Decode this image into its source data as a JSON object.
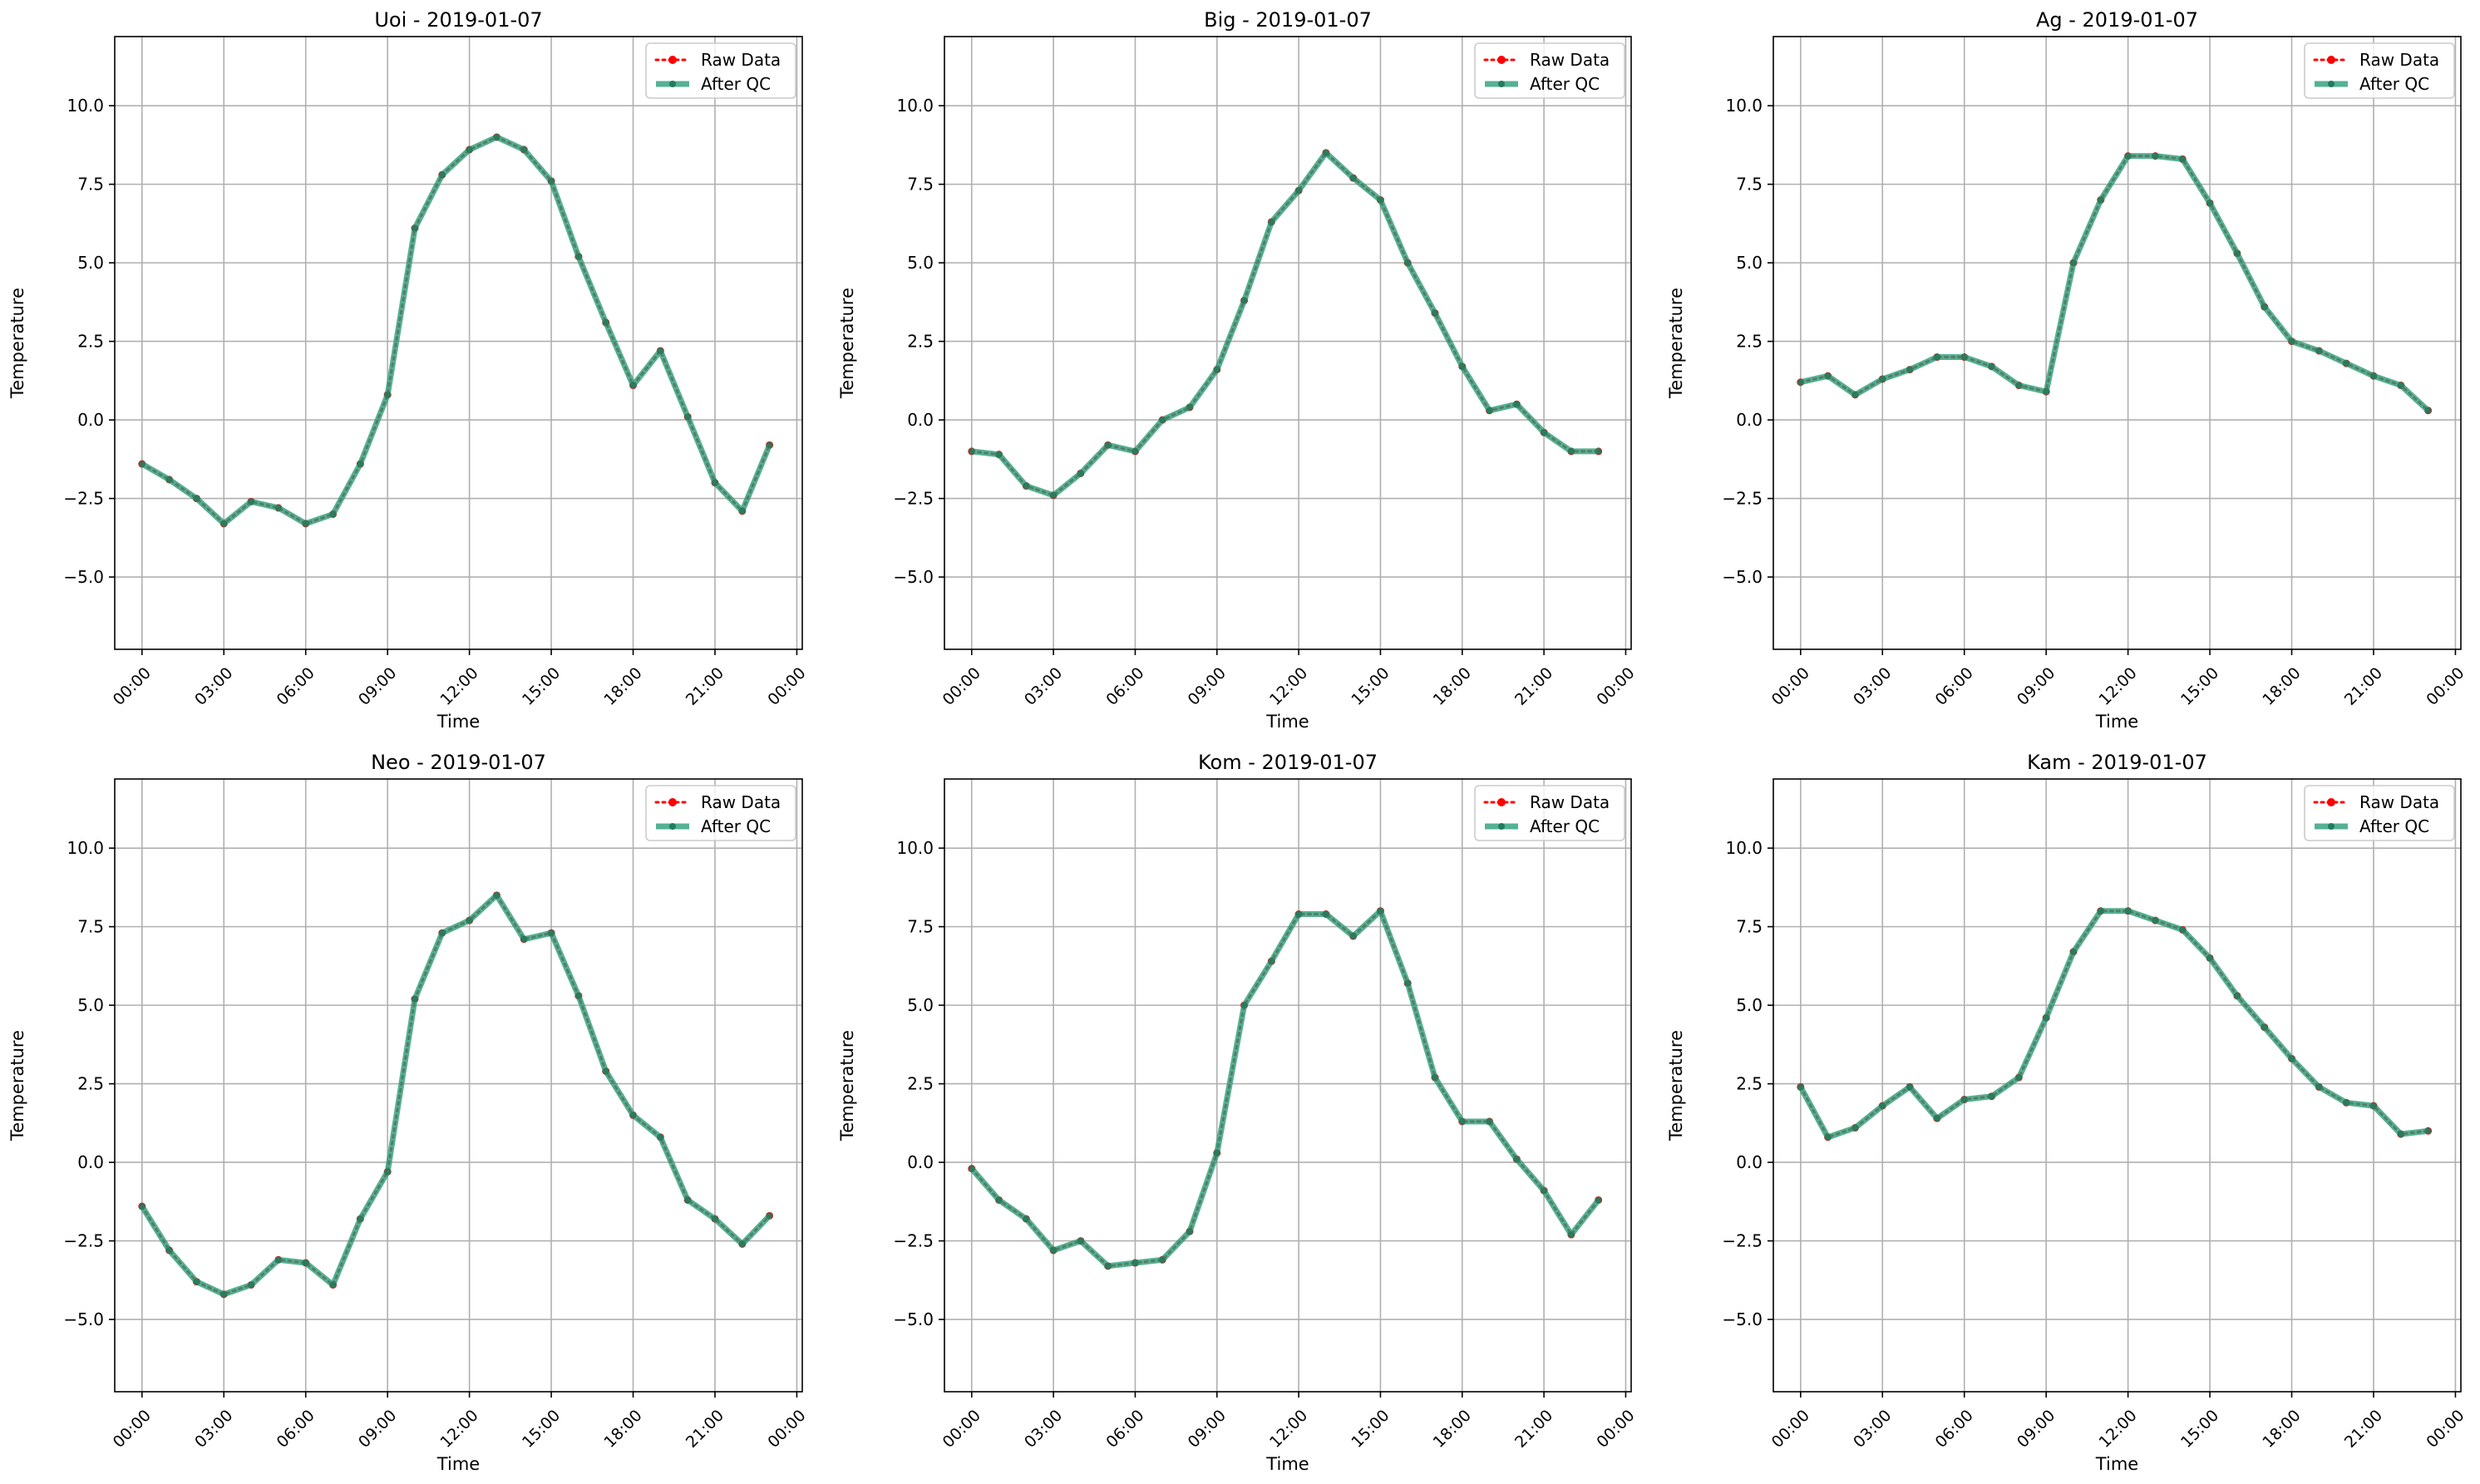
{
  "chart_data": [
    {
      "type": "line",
      "title": "Uoi - 2019-01-07",
      "xlabel": "Time",
      "ylabel": "Temperature",
      "xlim": [
        "2019-01-07 00:00",
        "2019-01-08 00:00"
      ],
      "ylim": [
        -7.3,
        12.2
      ],
      "xticks": [
        "00:00",
        "03:00",
        "06:00",
        "09:00",
        "12:00",
        "15:00",
        "18:00",
        "21:00",
        "00:00"
      ],
      "yticks": [
        "−5.0",
        "−2.5",
        "0.0",
        "2.5",
        "5.0",
        "7.5",
        "10.0"
      ],
      "grid": true,
      "legend": "top-right",
      "x": [
        "00:00",
        "01:00",
        "02:00",
        "03:00",
        "04:00",
        "05:00",
        "06:00",
        "07:00",
        "08:00",
        "09:00",
        "10:00",
        "11:00",
        "12:00",
        "13:00",
        "14:00",
        "15:00",
        "16:00",
        "17:00",
        "18:00",
        "19:00",
        "20:00",
        "21:00",
        "22:00",
        "23:00"
      ],
      "series": [
        {
          "name": "Raw Data",
          "color": "#ff0000",
          "values": [
            -1.4,
            -1.9,
            -2.5,
            -3.3,
            -2.6,
            -2.8,
            -3.3,
            -3.0,
            -1.4,
            0.8,
            6.1,
            7.8,
            8.6,
            9.0,
            8.6,
            7.6,
            5.2,
            3.1,
            1.1,
            2.2,
            0.1,
            -2.0,
            -2.9,
            -0.8
          ]
        },
        {
          "name": "After QC",
          "color": "#2a9d7a",
          "values": [
            -1.4,
            -1.9,
            -2.5,
            -3.3,
            -2.6,
            -2.8,
            -3.3,
            -3.0,
            -1.4,
            0.8,
            6.1,
            7.8,
            8.6,
            9.0,
            8.6,
            7.6,
            5.2,
            3.1,
            1.1,
            2.2,
            0.1,
            -2.0,
            -2.9,
            -0.8
          ]
        }
      ]
    },
    {
      "type": "line",
      "title": "Big - 2019-01-07",
      "xlabel": "Time",
      "ylabel": "Temperature",
      "xlim": [
        "2019-01-07 00:00",
        "2019-01-08 00:00"
      ],
      "ylim": [
        -7.3,
        12.2
      ],
      "xticks": [
        "00:00",
        "03:00",
        "06:00",
        "09:00",
        "12:00",
        "15:00",
        "18:00",
        "21:00",
        "00:00"
      ],
      "yticks": [
        "−5.0",
        "−2.5",
        "0.0",
        "2.5",
        "5.0",
        "7.5",
        "10.0"
      ],
      "grid": true,
      "legend": "top-right",
      "x": [
        "00:00",
        "01:00",
        "02:00",
        "03:00",
        "04:00",
        "05:00",
        "06:00",
        "07:00",
        "08:00",
        "09:00",
        "10:00",
        "11:00",
        "12:00",
        "13:00",
        "14:00",
        "15:00",
        "16:00",
        "17:00",
        "18:00",
        "19:00",
        "20:00",
        "21:00",
        "22:00",
        "23:00"
      ],
      "series": [
        {
          "name": "Raw Data",
          "color": "#ff0000",
          "values": [
            -1.0,
            -1.1,
            -2.1,
            -2.4,
            -1.7,
            -0.8,
            -1.0,
            0.0,
            0.4,
            1.6,
            3.8,
            6.3,
            7.3,
            8.5,
            7.7,
            7.0,
            5.0,
            3.4,
            1.7,
            0.3,
            0.5,
            -0.4,
            -1.0,
            -1.0
          ]
        },
        {
          "name": "After QC",
          "color": "#2a9d7a",
          "values": [
            -1.0,
            -1.1,
            -2.1,
            -2.4,
            -1.7,
            -0.8,
            -1.0,
            0.0,
            0.4,
            1.6,
            3.8,
            6.3,
            7.3,
            8.5,
            7.7,
            7.0,
            5.0,
            3.4,
            1.7,
            0.3,
            0.5,
            -0.4,
            -1.0,
            -1.0
          ]
        }
      ]
    },
    {
      "type": "line",
      "title": "Ag - 2019-01-07",
      "xlabel": "Time",
      "ylabel": "Temperature",
      "xlim": [
        "2019-01-07 00:00",
        "2019-01-08 00:00"
      ],
      "ylim": [
        -7.3,
        12.2
      ],
      "xticks": [
        "00:00",
        "03:00",
        "06:00",
        "09:00",
        "12:00",
        "15:00",
        "18:00",
        "21:00",
        "00:00"
      ],
      "yticks": [
        "−5.0",
        "−2.5",
        "0.0",
        "2.5",
        "5.0",
        "7.5",
        "10.0"
      ],
      "grid": true,
      "legend": "top-right",
      "x": [
        "00:00",
        "01:00",
        "02:00",
        "03:00",
        "04:00",
        "05:00",
        "06:00",
        "07:00",
        "08:00",
        "09:00",
        "10:00",
        "11:00",
        "12:00",
        "13:00",
        "14:00",
        "15:00",
        "16:00",
        "17:00",
        "18:00",
        "19:00",
        "20:00",
        "21:00",
        "22:00",
        "23:00"
      ],
      "series": [
        {
          "name": "Raw Data",
          "color": "#ff0000",
          "values": [
            1.2,
            1.4,
            0.8,
            1.3,
            1.6,
            2.0,
            2.0,
            1.7,
            1.1,
            0.9,
            5.0,
            7.0,
            8.4,
            8.4,
            8.3,
            6.9,
            5.3,
            3.6,
            2.5,
            2.2,
            1.8,
            1.4,
            1.1,
            0.3
          ]
        },
        {
          "name": "After QC",
          "color": "#2a9d7a",
          "values": [
            1.2,
            1.4,
            0.8,
            1.3,
            1.6,
            2.0,
            2.0,
            1.7,
            1.1,
            0.9,
            5.0,
            7.0,
            8.4,
            8.4,
            8.3,
            6.9,
            5.3,
            3.6,
            2.5,
            2.2,
            1.8,
            1.4,
            1.1,
            0.3
          ]
        }
      ]
    },
    {
      "type": "line",
      "title": "Neo - 2019-01-07",
      "xlabel": "Time",
      "ylabel": "Temperature",
      "xlim": [
        "2019-01-07 00:00",
        "2019-01-08 00:00"
      ],
      "ylim": [
        -7.3,
        12.2
      ],
      "xticks": [
        "00:00",
        "03:00",
        "06:00",
        "09:00",
        "12:00",
        "15:00",
        "18:00",
        "21:00",
        "00:00"
      ],
      "yticks": [
        "−5.0",
        "−2.5",
        "0.0",
        "2.5",
        "5.0",
        "7.5",
        "10.0"
      ],
      "grid": true,
      "legend": "top-right",
      "x": [
        "00:00",
        "01:00",
        "02:00",
        "03:00",
        "04:00",
        "05:00",
        "06:00",
        "07:00",
        "08:00",
        "09:00",
        "10:00",
        "11:00",
        "12:00",
        "13:00",
        "14:00",
        "15:00",
        "16:00",
        "17:00",
        "18:00",
        "19:00",
        "20:00",
        "21:00",
        "22:00",
        "23:00"
      ],
      "series": [
        {
          "name": "Raw Data",
          "color": "#ff0000",
          "values": [
            -1.4,
            -2.8,
            -3.8,
            -4.2,
            -3.9,
            -3.1,
            -3.2,
            -3.9,
            -1.8,
            -0.3,
            5.2,
            7.3,
            7.7,
            8.5,
            7.1,
            7.3,
            5.3,
            2.9,
            1.5,
            0.8,
            -1.2,
            -1.8,
            -2.6,
            -1.7
          ]
        },
        {
          "name": "After QC",
          "color": "#2a9d7a",
          "values": [
            -1.4,
            -2.8,
            -3.8,
            -4.2,
            -3.9,
            -3.1,
            -3.2,
            -3.9,
            -1.8,
            -0.3,
            5.2,
            7.3,
            7.7,
            8.5,
            7.1,
            7.3,
            5.3,
            2.9,
            1.5,
            0.8,
            -1.2,
            -1.8,
            -2.6,
            -1.7
          ]
        }
      ]
    },
    {
      "type": "line",
      "title": "Kom - 2019-01-07",
      "xlabel": "Time",
      "ylabel": "Temperature",
      "xlim": [
        "2019-01-07 00:00",
        "2019-01-08 00:00"
      ],
      "ylim": [
        -7.3,
        12.2
      ],
      "xticks": [
        "00:00",
        "03:00",
        "06:00",
        "09:00",
        "12:00",
        "15:00",
        "18:00",
        "21:00",
        "00:00"
      ],
      "yticks": [
        "−5.0",
        "−2.5",
        "0.0",
        "2.5",
        "5.0",
        "7.5",
        "10.0"
      ],
      "grid": true,
      "legend": "top-right",
      "x": [
        "00:00",
        "01:00",
        "02:00",
        "03:00",
        "04:00",
        "05:00",
        "06:00",
        "07:00",
        "08:00",
        "09:00",
        "10:00",
        "11:00",
        "12:00",
        "13:00",
        "14:00",
        "15:00",
        "16:00",
        "17:00",
        "18:00",
        "19:00",
        "20:00",
        "21:00",
        "22:00",
        "23:00"
      ],
      "series": [
        {
          "name": "Raw Data",
          "color": "#ff0000",
          "values": [
            -0.2,
            -1.2,
            -1.8,
            -2.8,
            -2.5,
            -3.3,
            -3.2,
            -3.1,
            -2.2,
            0.3,
            5.0,
            6.4,
            7.9,
            7.9,
            7.2,
            8.0,
            5.7,
            2.7,
            1.3,
            1.3,
            0.1,
            -0.9,
            -2.3,
            -1.2
          ]
        },
        {
          "name": "After QC",
          "color": "#2a9d7a",
          "values": [
            -0.2,
            -1.2,
            -1.8,
            -2.8,
            -2.5,
            -3.3,
            -3.2,
            -3.1,
            -2.2,
            0.3,
            5.0,
            6.4,
            7.9,
            7.9,
            7.2,
            8.0,
            5.7,
            2.7,
            1.3,
            1.3,
            0.1,
            -0.9,
            -2.3,
            -1.2
          ]
        }
      ]
    },
    {
      "type": "line",
      "title": "Kam - 2019-01-07",
      "xlabel": "Time",
      "ylabel": "Temperature",
      "xlim": [
        "2019-01-07 00:00",
        "2019-01-08 00:00"
      ],
      "ylim": [
        -7.3,
        12.2
      ],
      "xticks": [
        "00:00",
        "03:00",
        "06:00",
        "09:00",
        "12:00",
        "15:00",
        "18:00",
        "21:00",
        "00:00"
      ],
      "yticks": [
        "−5.0",
        "−2.5",
        "0.0",
        "2.5",
        "5.0",
        "7.5",
        "10.0"
      ],
      "grid": true,
      "legend": "top-right",
      "x": [
        "00:00",
        "01:00",
        "02:00",
        "03:00",
        "04:00",
        "05:00",
        "06:00",
        "07:00",
        "08:00",
        "09:00",
        "10:00",
        "11:00",
        "12:00",
        "13:00",
        "14:00",
        "15:00",
        "16:00",
        "17:00",
        "18:00",
        "19:00",
        "20:00",
        "21:00",
        "22:00",
        "23:00"
      ],
      "series": [
        {
          "name": "Raw Data",
          "color": "#ff0000",
          "values": [
            2.4,
            0.8,
            1.1,
            1.8,
            2.4,
            1.4,
            2.0,
            2.1,
            2.7,
            4.6,
            6.7,
            8.0,
            8.0,
            7.7,
            7.4,
            6.5,
            5.3,
            4.3,
            3.3,
            2.4,
            1.9,
            1.8,
            0.9,
            1.0
          ]
        },
        {
          "name": "After QC",
          "color": "#2a9d7a",
          "values": [
            2.4,
            0.8,
            1.1,
            1.8,
            2.4,
            1.4,
            2.0,
            2.1,
            2.7,
            4.6,
            6.7,
            8.0,
            8.0,
            7.7,
            7.4,
            6.5,
            5.3,
            4.3,
            3.3,
            2.4,
            1.9,
            1.8,
            0.9,
            1.0
          ]
        }
      ]
    }
  ]
}
